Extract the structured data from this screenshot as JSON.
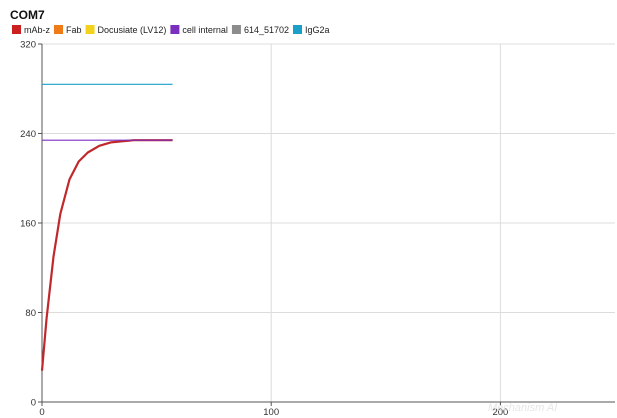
{
  "chart_data": {
    "type": "line",
    "title": "COM7",
    "xlabel": "",
    "ylabel": "",
    "xlim": [
      0,
      250
    ],
    "ylim": [
      0,
      320
    ],
    "x_ticks": [
      0,
      100,
      200
    ],
    "y_ticks": [
      0,
      80,
      160,
      240,
      320
    ],
    "grid": true,
    "legend_position": "top-left",
    "legend": [
      {
        "name": "mAb-z",
        "color": "#cc1f1f"
      },
      {
        "name": "Fab",
        "color": "#ef7a16"
      },
      {
        "name": "Docusiate (LV12)",
        "color": "#f2d21b"
      },
      {
        "name": "cell internal",
        "color": "#7b2fbf"
      },
      {
        "name": "614_51702",
        "color": "#8c8c8c"
      },
      {
        "name": "IgG2a",
        "color": "#1aa0c8"
      }
    ],
    "series": [
      {
        "name": "mAb-z",
        "color": "#c0282b",
        "x": [
          0,
          2,
          5,
          8,
          12,
          16,
          20,
          25,
          30,
          35,
          40,
          50,
          57
        ],
        "y": [
          28,
          75,
          130,
          168,
          199,
          215,
          223,
          229,
          232,
          233,
          234,
          234,
          234
        ]
      },
      {
        "name": "cell internal",
        "color": "#7b2fbf",
        "x": [
          0,
          57
        ],
        "y": [
          234,
          234
        ]
      },
      {
        "name": "IgG2a",
        "color": "#1aa0c8",
        "x": [
          0,
          57
        ],
        "y": [
          284,
          284
        ]
      }
    ]
  },
  "watermark": "Mechanism AI"
}
